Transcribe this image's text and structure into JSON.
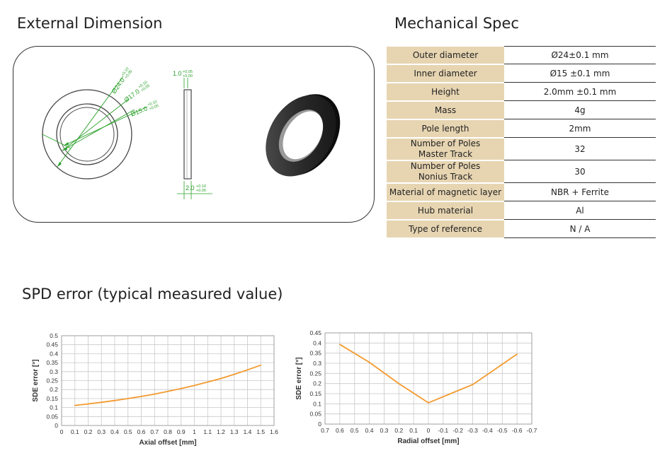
{
  "headings": {
    "external_dimension": "External Dimension",
    "mechanical_spec": "Mechanical Spec",
    "spd_error": "SPD error (typical measured value)"
  },
  "drawing": {
    "dim_outer": "Ø24.0",
    "dim_outer_tol_upper": "+0.10",
    "dim_outer_tol_lower": "+0.05",
    "dim_mid": "Ø17.0",
    "dim_mid_tol_upper": "+0.10",
    "dim_mid_tol_lower": "+0.05",
    "dim_inner": "Ø15.0",
    "dim_inner_tol_upper": "+0.10",
    "dim_inner_tol_lower": "+0.05",
    "dim_hub_width": "1.0",
    "dim_hub_tol_upper": "+0.05",
    "dim_hub_tol_lower": "+0.00",
    "dim_height": "2.0",
    "dim_height_tol_upper": "+0.10",
    "dim_height_tol_lower": "+0.05",
    "colors": {
      "dimension": "#2aa02a",
      "outline": "#333333"
    }
  },
  "spec_table": [
    {
      "key": "Outer diameter",
      "value": "Ø24±0.1 mm"
    },
    {
      "key": "Inner diameter",
      "value": "Ø15 ±0.1 mm"
    },
    {
      "key": "Height",
      "value": "2.0mm ±0.1 mm"
    },
    {
      "key": "Mass",
      "value": "4g"
    },
    {
      "key": "Pole length",
      "value": "2mm"
    },
    {
      "key": "Number of Poles",
      "key2": "Master Track",
      "value": "32"
    },
    {
      "key": "Number of Poles",
      "key2": "Nonius Track",
      "value": "30"
    },
    {
      "key": "Material of magnetic layer",
      "value": "NBR + Ferrite"
    },
    {
      "key": "Hub material",
      "value": "Al"
    },
    {
      "key": "Type of reference",
      "value": "N / A"
    }
  ],
  "chart_data": [
    {
      "type": "line",
      "xlabel": "Axial offset [mm]",
      "ylabel": "SDE error [°]",
      "x_ticks": [
        "0",
        "0.1",
        "0.2",
        "0.3",
        "0.4",
        "0.5",
        "0.6",
        "0.7",
        "0.8",
        "0.9",
        "1",
        "1.1",
        "1.2",
        "1.3",
        "1.4",
        "1.5",
        "1.6"
      ],
      "y_ticks": [
        "0",
        "0.05",
        "0.1",
        "0.15",
        "0.2",
        "0.25",
        "0.3",
        "0.35",
        "0.4",
        "0.45",
        "0.5"
      ],
      "xlim": [
        0,
        1.6
      ],
      "ylim": [
        0,
        0.5
      ],
      "grid": true,
      "color": "#f39a2e",
      "x": [
        0.1,
        0.2,
        0.3,
        0.4,
        0.5,
        0.6,
        0.7,
        0.8,
        0.9,
        1.0,
        1.1,
        1.2,
        1.3,
        1.4,
        1.5
      ],
      "y": [
        0.112,
        0.12,
        0.129,
        0.139,
        0.15,
        0.162,
        0.175,
        0.19,
        0.206,
        0.223,
        0.242,
        0.262,
        0.285,
        0.31,
        0.336
      ]
    },
    {
      "type": "line",
      "xlabel": "Radial offset [mm]",
      "ylabel": "SDE error [°]",
      "x_ticks": [
        "0.7",
        "0.6",
        "0.5",
        "0.4",
        "0.3",
        "0.2",
        "0.1",
        "0",
        "-0.1",
        "-0.2",
        "-0.3",
        "-0.4",
        "-0.5",
        "-0.6",
        "-0.7"
      ],
      "y_ticks": [
        "0",
        "0.05",
        "0.1",
        "0.15",
        "0.2",
        "0.25",
        "0.3",
        "0.35",
        "0.4",
        "0.45"
      ],
      "xlim": [
        0.7,
        -0.7
      ],
      "ylim": [
        0,
        0.45
      ],
      "grid": true,
      "color": "#f39a2e",
      "x": [
        0.6,
        0.4,
        0.2,
        0,
        -0.3,
        -0.6
      ],
      "y": [
        0.393,
        0.305,
        0.2,
        0.105,
        0.195,
        0.345
      ]
    }
  ]
}
